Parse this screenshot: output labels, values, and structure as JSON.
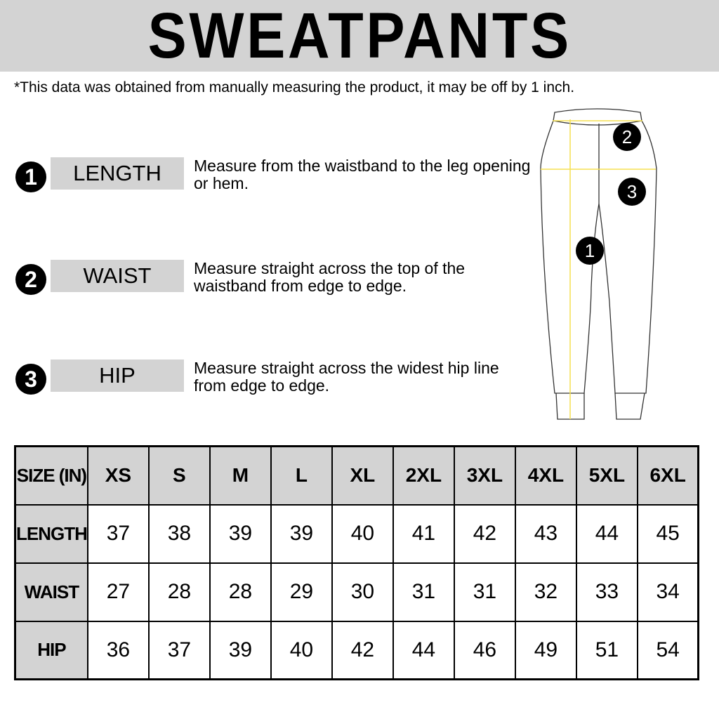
{
  "title": "SWEATPANTS",
  "note": "*This data was obtained from manually measuring the product, it may be off by 1 inch.",
  "measures": [
    {
      "num": "1",
      "label": "LENGTH",
      "desc": "Measure from the waistband to the leg opening or hem."
    },
    {
      "num": "2",
      "label": "WAIST",
      "desc": "Measure straight across the top of the waistband from edge to edge."
    },
    {
      "num": "3",
      "label": "HIP",
      "desc": "Measure straight across the widest hip line from edge to edge."
    }
  ],
  "diagram": {
    "markers": [
      "2",
      "3",
      "1"
    ],
    "line_color": "#f5e050"
  },
  "table": {
    "corner": "SIZE (IN)",
    "sizes": [
      "XS",
      "S",
      "M",
      "L",
      "XL",
      "2XL",
      "3XL",
      "4XL",
      "5XL",
      "6XL"
    ],
    "rows": [
      {
        "label": "LENGTH",
        "values": [
          "37",
          "38",
          "39",
          "39",
          "40",
          "41",
          "42",
          "43",
          "44",
          "45"
        ]
      },
      {
        "label": "WAIST",
        "values": [
          "27",
          "28",
          "28",
          "29",
          "30",
          "31",
          "31",
          "32",
          "33",
          "34"
        ]
      },
      {
        "label": "HIP",
        "values": [
          "36",
          "37",
          "39",
          "40",
          "42",
          "44",
          "46",
          "49",
          "51",
          "54"
        ]
      }
    ]
  },
  "colors": {
    "gray": "#d3d3d3"
  }
}
